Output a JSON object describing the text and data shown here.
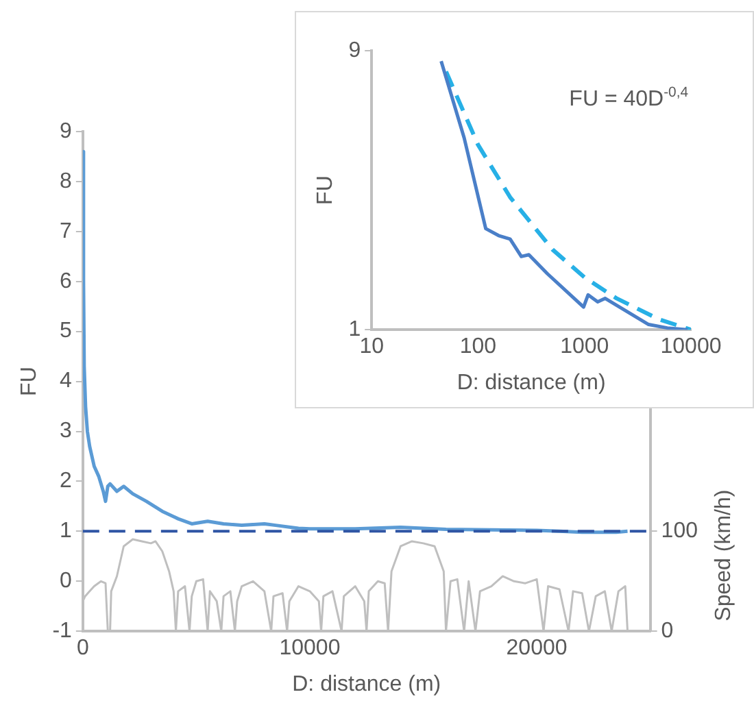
{
  "chart_data": [
    {
      "type": "line",
      "xlabel": "D: distance (m)",
      "ylabel": "FU",
      "y2label": "Speed (km/h)",
      "xlim": [
        0,
        25000
      ],
      "xticks": [
        0,
        10000,
        20000
      ],
      "ylim": [
        -1,
        9
      ],
      "yticks": [
        -1,
        0,
        1,
        2,
        3,
        4,
        5,
        6,
        7,
        8,
        9
      ],
      "y2lim": [
        0,
        500
      ],
      "y2ticks": [
        0,
        100
      ],
      "grid": false,
      "legend": false,
      "ref_lines": [
        {
          "axis": "y",
          "value": 1,
          "color": "#2f55a4",
          "line_style": "dashed"
        }
      ],
      "series": [
        {
          "color": "#5b9bd5",
          "x": [
            0,
            30,
            60,
            120,
            200,
            300,
            500,
            700,
            900,
            1000,
            1100,
            1200,
            1500,
            1800,
            2200,
            2800,
            3500,
            4200,
            4800,
            5500,
            6200,
            7000,
            8000,
            8500,
            9500,
            10000,
            12000,
            14000,
            15000,
            16000,
            18000,
            20000,
            21000,
            22000,
            23500,
            24000
          ],
          "values": [
            8.6,
            6,
            4.3,
            3.5,
            3,
            2.7,
            2.3,
            2.1,
            1.8,
            1.6,
            1.9,
            1.95,
            1.8,
            1.9,
            1.75,
            1.6,
            1.4,
            1.25,
            1.15,
            1.2,
            1.15,
            1.12,
            1.15,
            1.12,
            1.06,
            1.05,
            1.05,
            1.08,
            1.06,
            1.04,
            1.03,
            1.02,
            1.0,
            0.98,
            0.98,
            1.0
          ]
        },
        {
          "color": "#bfbfbf",
          "axis": "y2",
          "x": [
            0,
            100,
            300,
            500,
            800,
            1000,
            1100,
            1200,
            1250,
            1500,
            1800,
            2200,
            2600,
            3000,
            3200,
            3500,
            3800,
            4000,
            4100,
            4200,
            4500,
            4700,
            4800,
            5000,
            5300,
            5500,
            5600,
            5900,
            6100,
            6200,
            6500,
            6700,
            6800,
            7000,
            7500,
            8000,
            8300,
            8400,
            8800,
            9000,
            9100,
            9500,
            10000,
            10400,
            10500,
            10600,
            11000,
            11400,
            11500,
            12000,
            12400,
            12500,
            12600,
            13000,
            13300,
            13450,
            13600,
            14000,
            14500,
            15000,
            15500,
            15900,
            16000,
            16200,
            16500,
            16800,
            17000,
            17300,
            17500,
            18000,
            18500,
            19000,
            19500,
            20000,
            20300,
            20500,
            21000,
            21400,
            21600,
            22000,
            22300,
            22600,
            23000,
            23300,
            23600,
            23900,
            24000
          ],
          "values": [
            30,
            35,
            40,
            45,
            50,
            48,
            0,
            0,
            40,
            55,
            85,
            92,
            90,
            88,
            90,
            80,
            60,
            40,
            0,
            40,
            45,
            0,
            35,
            50,
            52,
            0,
            40,
            30,
            0,
            35,
            40,
            0,
            30,
            45,
            50,
            40,
            0,
            35,
            38,
            0,
            30,
            45,
            40,
            30,
            0,
            35,
            40,
            0,
            35,
            45,
            30,
            0,
            40,
            50,
            48,
            0,
            60,
            85,
            90,
            88,
            85,
            60,
            0,
            50,
            52,
            0,
            50,
            0,
            40,
            45,
            55,
            50,
            48,
            52,
            0,
            45,
            42,
            0,
            40,
            38,
            0,
            35,
            40,
            0,
            40,
            45,
            0
          ]
        }
      ]
    },
    {
      "type": "line",
      "xlabel": "D: distance (m)",
      "ylabel": "FU",
      "log": "x",
      "xlim": [
        10,
        10000
      ],
      "xticks": [
        10,
        100,
        1000,
        10000
      ],
      "ylim": [
        1,
        9
      ],
      "yticks": [
        1,
        9
      ],
      "grid": false,
      "legend": false,
      "annotations": [
        "FU = 40D$^{-0,4}$"
      ],
      "series": [
        {
          "color": "#4a7fc8",
          "x": [
            45,
            74,
            118,
            156,
            200,
            255,
            300,
            450,
            980,
            1080,
            1330,
            1560,
            4000,
            6000,
            9300
          ],
          "values": [
            8.7,
            6.5,
            3.9,
            3.7,
            3.6,
            3.1,
            3.15,
            2.6,
            1.65,
            2.0,
            1.8,
            1.9,
            1.15,
            1.05,
            1.0
          ]
        },
        {
          "color": "#27b0e6",
          "line_style": "dashed",
          "x": [
            50,
            100,
            200,
            500,
            1000,
            2000,
            5000,
            10000
          ],
          "values": [
            8.4,
            6.3,
            4.8,
            3.3,
            2.5,
            1.9,
            1.3,
            1.0
          ]
        }
      ]
    }
  ]
}
